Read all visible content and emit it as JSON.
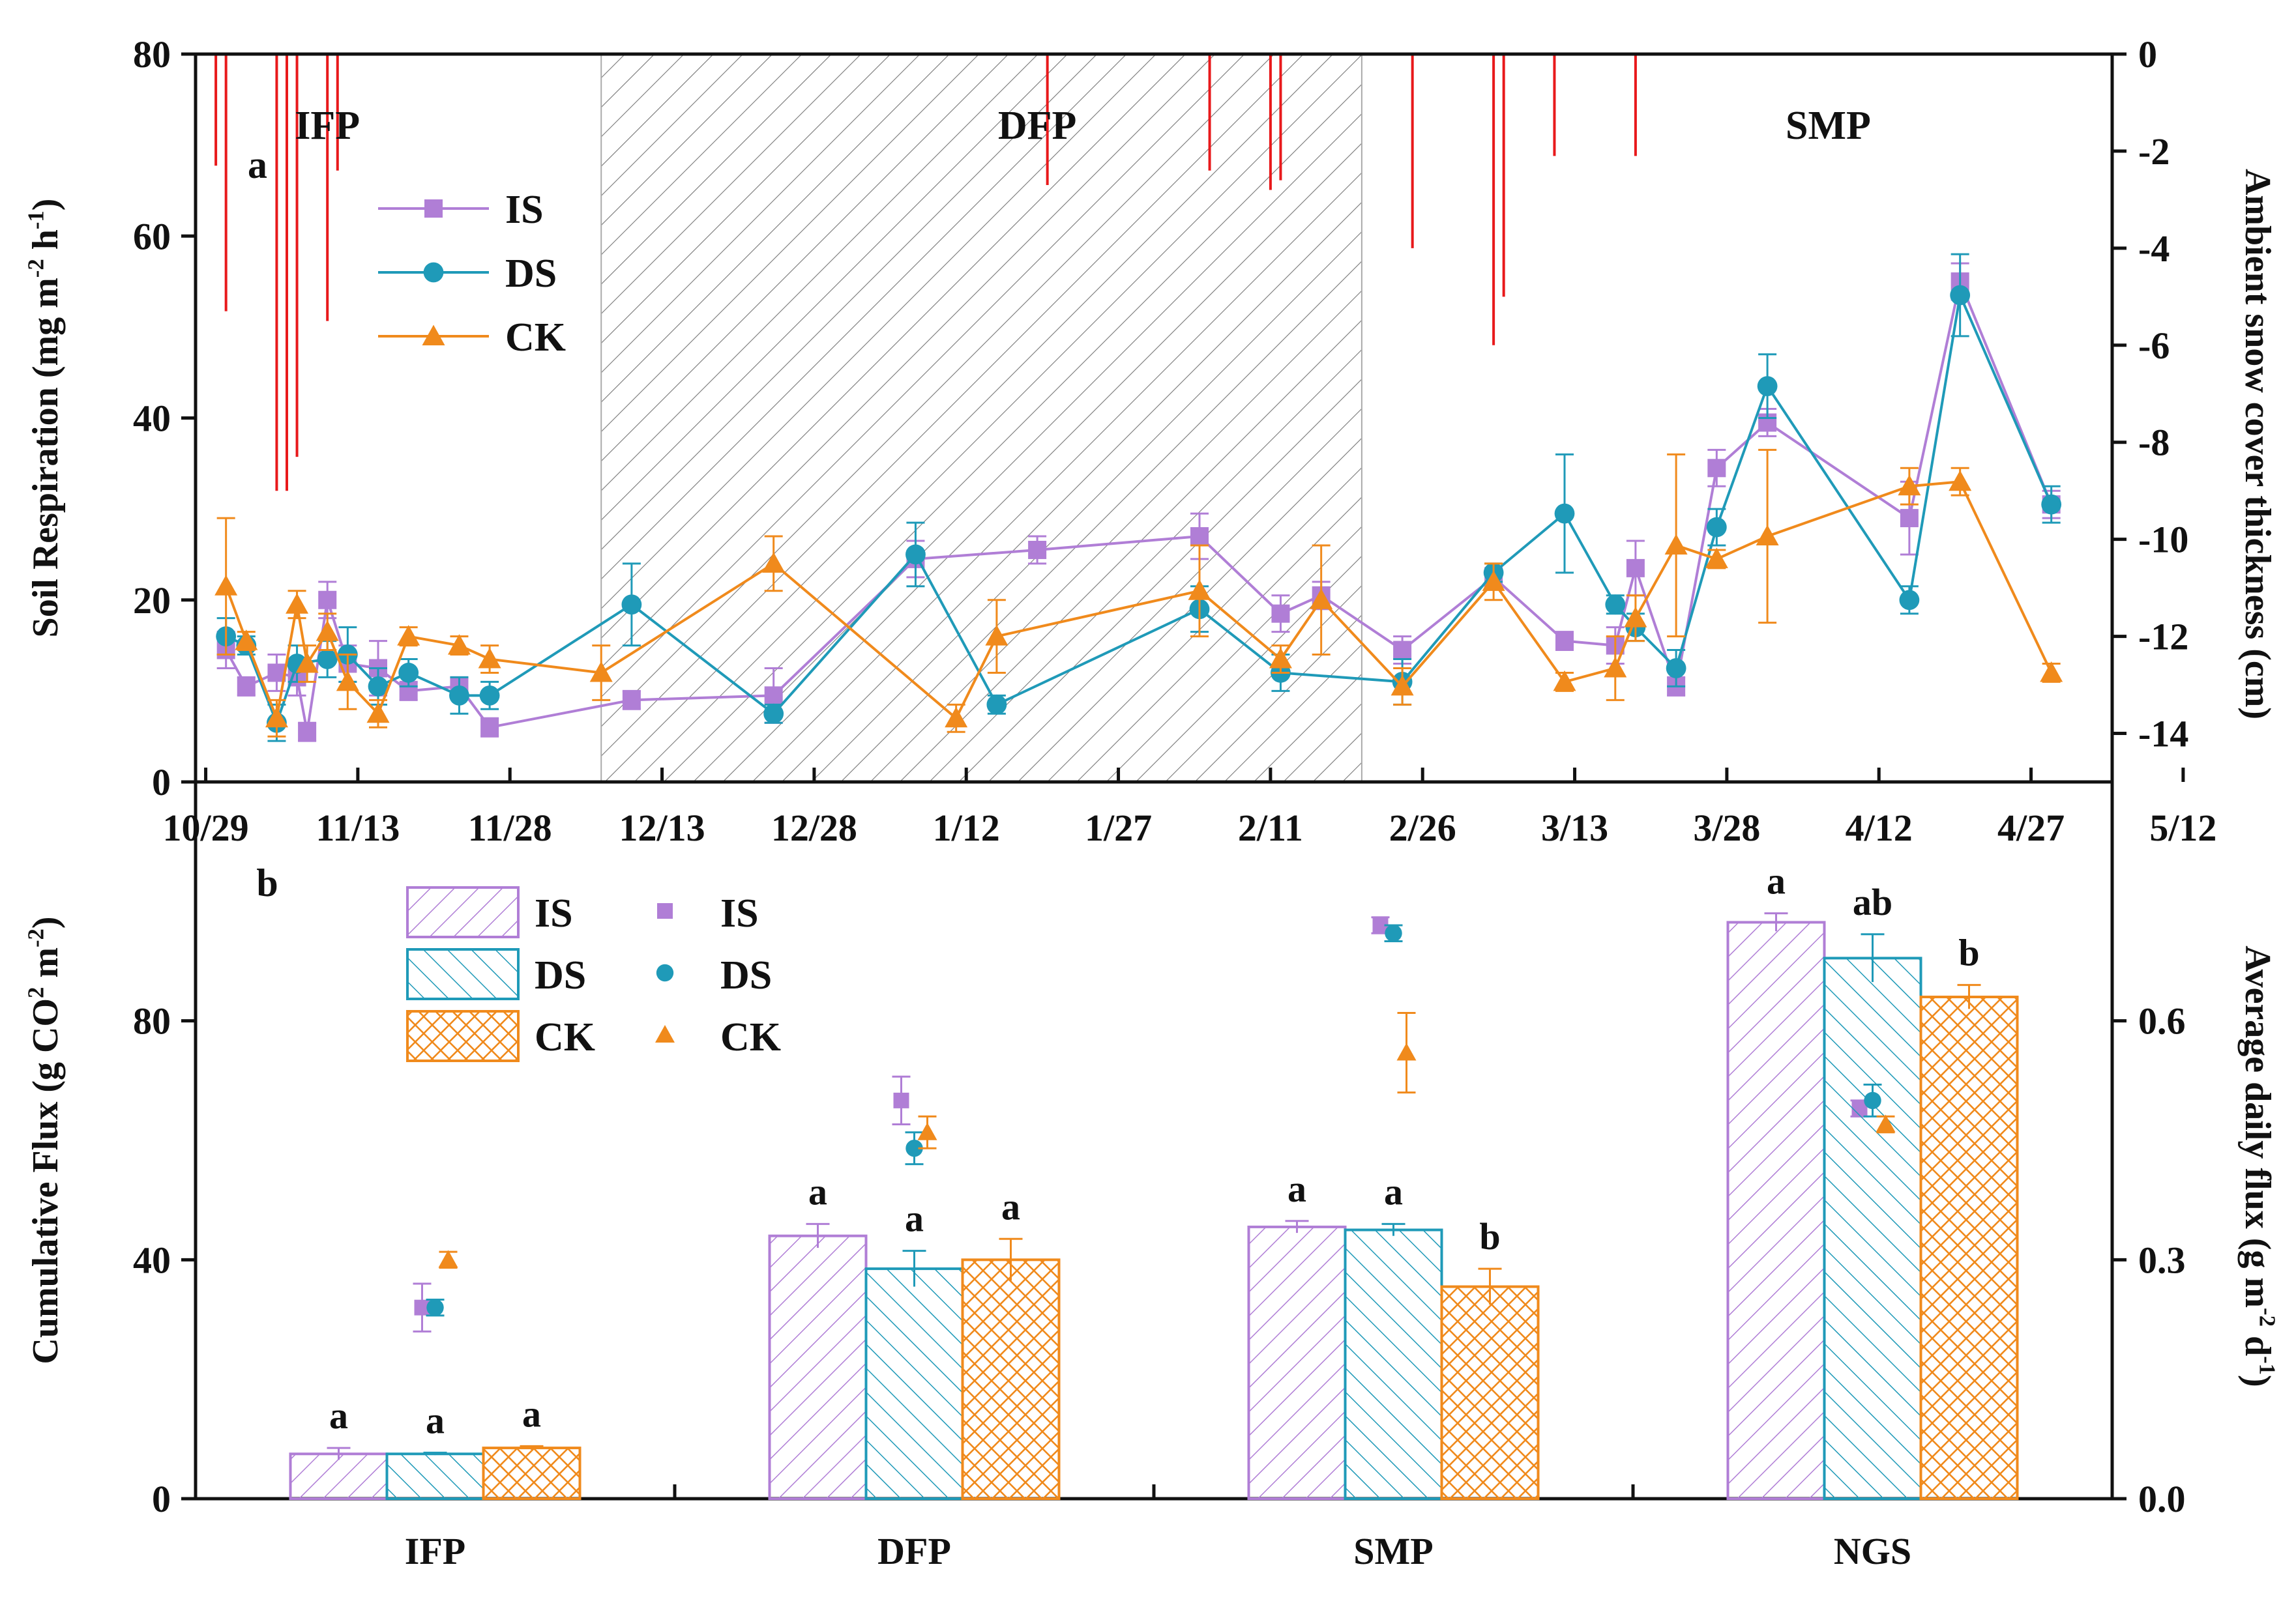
{
  "colors": {
    "IS": "#b07ed6",
    "DS": "#1f9ab8",
    "CK": "#f08a1c",
    "snow": "#e8191b",
    "axis": "#111111"
  },
  "chart_data": [
    {
      "type": "line",
      "panel_label": "a",
      "ylabel": "Soil Respiration (mg m-2 h-1)",
      "ylabel_parts": [
        "Soil Respiration (mg m",
        "-2",
        " h",
        "-1",
        ")"
      ],
      "y2label": "Ambient snow cover thickness (cm)",
      "x_ticks": [
        "10/29",
        "11/13",
        "11/28",
        "12/13",
        "12/28",
        "1/12",
        "1/27",
        "2/11",
        "2/26",
        "3/13",
        "3/28",
        "4/12",
        "4/27",
        "5/12"
      ],
      "x_range_days": [
        0,
        202
      ],
      "ylim": [
        0,
        80
      ],
      "y_ticks": [
        0,
        20,
        40,
        60,
        80
      ],
      "y2lim": [
        -15,
        0
      ],
      "y2_ticks": [
        0,
        -2,
        -4,
        -6,
        -8,
        -10,
        -12,
        -14
      ],
      "period_labels": [
        {
          "text": "IFP",
          "day": 12
        },
        {
          "text": "DFP",
          "day": 82
        },
        {
          "text": "SMP",
          "day": 160
        }
      ],
      "shaded_region_days": [
        39,
        114
      ],
      "series": [
        {
          "name": "IS",
          "marker": "square",
          "x": [
            2,
            4,
            7,
            9,
            10,
            12,
            14,
            17,
            20,
            25,
            28,
            42,
            56,
            70,
            82,
            98,
            106,
            110,
            118,
            127,
            134,
            139,
            141,
            145,
            149,
            154,
            168,
            173,
            182
          ],
          "y": [
            14.5,
            10.5,
            12,
            11.5,
            5.5,
            20,
            13,
            12.5,
            10,
            10.5,
            6,
            9,
            9.5,
            24.5,
            25.5,
            27,
            18.5,
            20.5,
            14.5,
            22.5,
            15.5,
            15.0,
            23.5,
            10.5,
            34.5,
            39.5,
            29,
            55,
            30.5
          ],
          "err": [
            2,
            1,
            2,
            2,
            1,
            2,
            2,
            3,
            1,
            1,
            1,
            1,
            3,
            2,
            1.5,
            2.5,
            2,
            1.5,
            1.5,
            1,
            1,
            2,
            3,
            1,
            2,
            1.5,
            4,
            2,
            1.5
          ]
        },
        {
          "name": "DS",
          "marker": "circle",
          "x": [
            2,
            4,
            7,
            9,
            12,
            14,
            17,
            20,
            25,
            28,
            42,
            56,
            70,
            78,
            98,
            106,
            118,
            127,
            134,
            139,
            141,
            145,
            149,
            154,
            168,
            173,
            182
          ],
          "y": [
            16,
            15,
            6.5,
            13,
            13.5,
            14,
            10.5,
            12,
            9.5,
            9.5,
            19.5,
            7.5,
            25,
            8.5,
            19,
            12,
            11,
            23,
            29.5,
            19.5,
            17,
            12.5,
            28,
            43.5,
            20,
            53.5,
            30.5
          ],
          "err": [
            2,
            1,
            2,
            2,
            2,
            3,
            2,
            1.5,
            2,
            1.5,
            4.5,
            1,
            3.5,
            1,
            2.5,
            2,
            2.5,
            1,
            6.5,
            1,
            1.5,
            2,
            2,
            3.5,
            1.5,
            4.5,
            2
          ]
        },
        {
          "name": "CK",
          "marker": "triangle",
          "x": [
            2,
            4,
            7,
            9,
            10,
            12,
            14,
            17,
            20,
            25,
            28,
            39,
            56,
            74,
            78,
            98,
            106,
            110,
            118,
            127,
            134,
            139,
            141,
            145,
            149,
            154,
            168,
            173,
            182
          ],
          "y": [
            21.5,
            15.5,
            7,
            19.5,
            13,
            16.5,
            11,
            7.5,
            16,
            15,
            13.5,
            12,
            24,
            7,
            16,
            21,
            13.5,
            20,
            10.5,
            22,
            11,
            12.5,
            18,
            26,
            24.5,
            27,
            32.5,
            33,
            12
          ],
          "err": [
            7.5,
            1,
            2,
            1.5,
            2,
            2,
            3,
            1.5,
            1,
            1,
            1.5,
            3,
            3,
            1.5,
            4,
            5,
            1.5,
            6,
            2,
            2,
            1,
            3.5,
            2.5,
            10,
            1,
            9.5,
            2,
            1.5,
            1
          ]
        }
      ],
      "snow_events": [
        {
          "day": 1,
          "depth": -2.3
        },
        {
          "day": 2,
          "depth": -5.3
        },
        {
          "day": 7,
          "depth": -9.0
        },
        {
          "day": 8,
          "depth": -9.0
        },
        {
          "day": 9,
          "depth": -8.3
        },
        {
          "day": 12,
          "depth": -5.5
        },
        {
          "day": 13,
          "depth": -2.4
        },
        {
          "day": 83,
          "depth": -2.7
        },
        {
          "day": 99,
          "depth": -2.4
        },
        {
          "day": 105,
          "depth": -2.8
        },
        {
          "day": 106,
          "depth": -2.6
        },
        {
          "day": 119,
          "depth": -4.0
        },
        {
          "day": 127,
          "depth": -6.0
        },
        {
          "day": 128,
          "depth": -5.0
        },
        {
          "day": 133,
          "depth": -2.1
        },
        {
          "day": 141,
          "depth": -2.1
        }
      ]
    },
    {
      "type": "bar",
      "panel_label": "b",
      "ylabel": "Cumulative Flux (g CO2 m-2)",
      "ylabel_parts": [
        "Cumulative Flux (g CO",
        "2",
        " m",
        "-2",
        ")"
      ],
      "y2label": "Average daily flux (g m-2 d-1)",
      "y2label_parts": [
        "Average daily  flux (g m",
        "-2",
        " d",
        "-1",
        ")"
      ],
      "categories": [
        "IFP",
        "DFP",
        "SMP",
        "NGS"
      ],
      "ylim": [
        0,
        120
      ],
      "y_ticks": [
        0,
        40,
        80
      ],
      "y2lim": [
        0,
        0.9
      ],
      "y2_ticks": [
        0.0,
        0.3,
        0.6
      ],
      "legend": [
        "IS",
        "DS",
        "CK"
      ],
      "series": [
        {
          "name": "IS",
          "values": [
            7.5,
            44,
            45.5,
            96.5
          ],
          "err": [
            1,
            2,
            1,
            1.5
          ],
          "letters": [
            "a",
            "a",
            "a",
            "a"
          ],
          "daily": [
            0.24,
            0.5,
            0.72,
            0.49
          ],
          "daily_err": [
            0.03,
            0.03,
            0.01,
            0.01
          ]
        },
        {
          "name": "DS",
          "values": [
            7.5,
            38.5,
            45,
            90.5
          ],
          "err": [
            0.2,
            3,
            1,
            4
          ],
          "letters": [
            "a",
            "a",
            "a",
            "ab"
          ],
          "daily": [
            0.24,
            0.44,
            0.71,
            0.5
          ],
          "daily_err": [
            0.01,
            0.02,
            0.01,
            0.02
          ]
        },
        {
          "name": "CK",
          "values": [
            8.5,
            40,
            35.5,
            84
          ],
          "err": [
            0.3,
            3.5,
            3,
            2
          ],
          "letters": [
            "a",
            "a",
            "b",
            "b"
          ],
          "daily": [
            0.3,
            0.46,
            0.56,
            0.47
          ],
          "daily_err": [
            0.01,
            0.02,
            0.05,
            0.01
          ]
        }
      ]
    }
  ]
}
